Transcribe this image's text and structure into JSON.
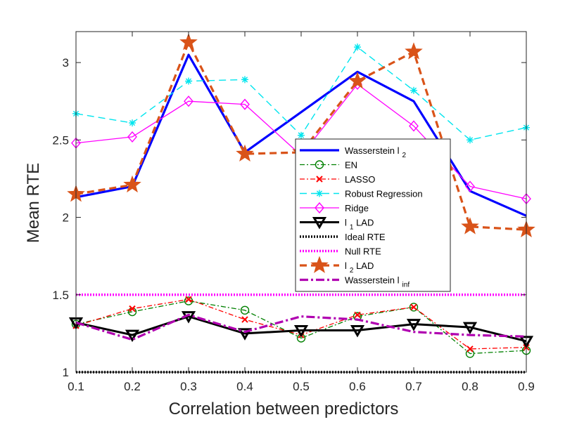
{
  "chart_data": {
    "type": "line",
    "title": "",
    "xlabel": "Correlation between predictors",
    "ylabel": "Mean RTE",
    "x": [
      0.1,
      0.2,
      0.3,
      0.4,
      0.5,
      0.6,
      0.7,
      0.8,
      0.9
    ],
    "xlim": [
      0.1,
      0.9
    ],
    "ylim": [
      1,
      3.2
    ],
    "xticks": [
      "0.1",
      "0.2",
      "0.3",
      "0.4",
      "0.5",
      "0.6",
      "0.7",
      "0.8",
      "0.9"
    ],
    "yticks": [
      "1",
      "1.5",
      "2",
      "2.5",
      "3"
    ],
    "ytick_values": [
      1,
      1.5,
      2,
      2.5,
      3
    ],
    "legend_position": "center",
    "series": [
      {
        "name": "Wasserstein l",
        "sub": "2",
        "color": "#0000ff",
        "dash": "",
        "width": 3.2,
        "marker": "none",
        "values": [
          2.13,
          2.2,
          3.05,
          2.42,
          2.68,
          2.94,
          2.75,
          2.17,
          2.01
        ]
      },
      {
        "name": "EN",
        "sub": "",
        "color": "#008000",
        "dash": "7 3 2 3",
        "width": 1.3,
        "marker": "circle",
        "values": [
          1.31,
          1.39,
          1.46,
          1.4,
          1.22,
          1.36,
          1.42,
          1.12,
          1.14
        ]
      },
      {
        "name": "LASSO",
        "sub": "",
        "color": "#ff0000",
        "dash": "7 3 2 3",
        "width": 1.3,
        "marker": "x",
        "values": [
          1.3,
          1.41,
          1.47,
          1.34,
          1.24,
          1.37,
          1.42,
          1.15,
          1.16
        ]
      },
      {
        "name": "Robust Regression",
        "sub": "",
        "color": "#00e5ee",
        "dash": "10 6",
        "width": 1.4,
        "marker": "asterisk",
        "values": [
          2.67,
          2.61,
          2.88,
          2.89,
          2.53,
          3.1,
          2.82,
          2.5,
          2.58
        ]
      },
      {
        "name": "Ridge",
        "sub": "",
        "color": "#ff00ff",
        "dash": "",
        "width": 1.3,
        "marker": "diamond",
        "values": [
          2.48,
          2.52,
          2.75,
          2.73,
          2.4,
          2.86,
          2.59,
          2.2,
          2.12
        ]
      },
      {
        "name": "l",
        "sub": "1",
        "suffix": " LAD",
        "color": "#000000",
        "dash": "",
        "width": 3,
        "marker": "triangle-down",
        "values": [
          1.32,
          1.24,
          1.36,
          1.25,
          1.27,
          1.27,
          1.31,
          1.29,
          1.2
        ]
      },
      {
        "name": "Ideal RTE",
        "sub": "",
        "color": "#000000",
        "dash": "2 2",
        "width": 3.5,
        "marker": "none",
        "values": [
          1,
          1,
          1,
          1,
          1,
          1,
          1,
          1,
          1
        ]
      },
      {
        "name": "Null RTE",
        "sub": "",
        "color": "#ff00ff",
        "dash": "2 2",
        "width": 3.5,
        "marker": "none",
        "values": [
          1.5,
          1.5,
          1.5,
          1.5,
          1.5,
          1.5,
          1.5,
          1.5,
          1.5
        ]
      },
      {
        "name": "l",
        "sub": "2",
        "suffix": " LAD",
        "color": "#d95319",
        "dash": "10 6",
        "width": 3.2,
        "marker": "star",
        "values": [
          2.15,
          2.21,
          3.13,
          2.41,
          2.42,
          2.88,
          3.07,
          1.94,
          1.92
        ]
      },
      {
        "name": "Wasserstein l",
        "sub": "inf",
        "color": "#b000b0",
        "dash": "12 4 3 4",
        "width": 3.2,
        "marker": "none",
        "values": [
          1.32,
          1.21,
          1.37,
          1.26,
          1.36,
          1.34,
          1.26,
          1.24,
          1.23
        ]
      }
    ]
  }
}
